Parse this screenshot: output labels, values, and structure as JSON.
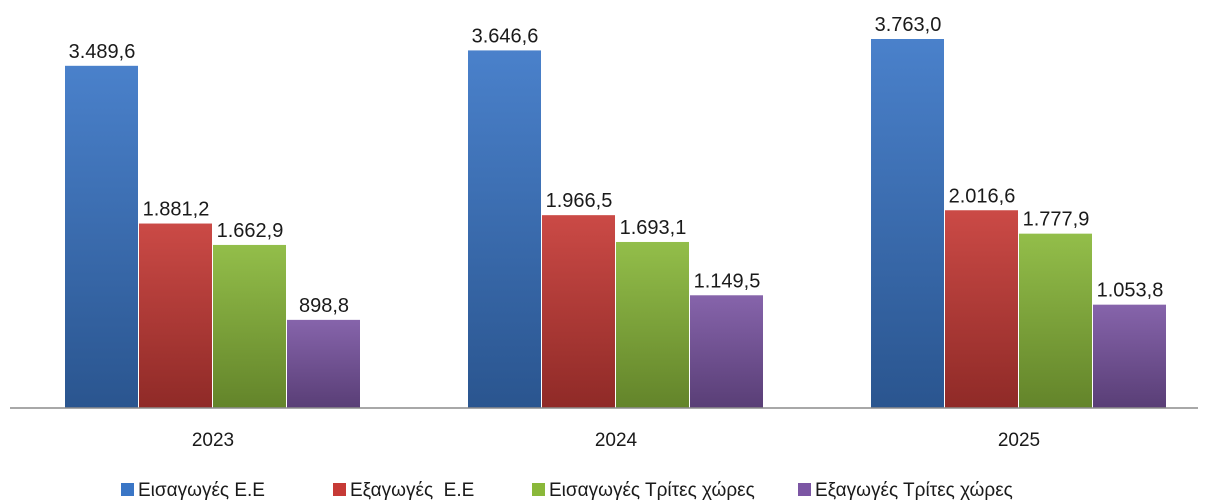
{
  "chart_data": {
    "type": "bar",
    "categories": [
      "2023",
      "2024",
      "2025"
    ],
    "series": [
      {
        "name": "Εισαγωγές Ε.Ε",
        "values": [
          3489.6,
          3646.6,
          3763.0
        ],
        "labels": [
          "3.489,6",
          "3.646,6",
          "3.763,0"
        ],
        "color": "#3a76c6"
      },
      {
        "name": "Εξαγωγές  Ε.Ε",
        "values": [
          1881.2,
          1966.5,
          2016.6
        ],
        "labels": [
          "1.881,2",
          "1.966,5",
          "2.016,6"
        ],
        "color": "#c63a36"
      },
      {
        "name": "Εισαγωγές Τρίτες χώρες",
        "values": [
          1662.9,
          1693.1,
          1777.9
        ],
        "labels": [
          "1.662,9",
          "1.693,1",
          "1.777,9"
        ],
        "color": "#8ab83a"
      },
      {
        "name": "Εξαγωγές Τρίτες χώρες",
        "values": [
          898.8,
          1149.5,
          1053.8
        ],
        "labels": [
          "898,8",
          "1.149,5",
          "1.053,8"
        ],
        "color": "#7c56a4"
      }
    ],
    "title": "",
    "xlabel": "",
    "ylabel": "",
    "ylim": [
      0,
      3763.0
    ],
    "grid": false,
    "legend_position": "bottom"
  }
}
